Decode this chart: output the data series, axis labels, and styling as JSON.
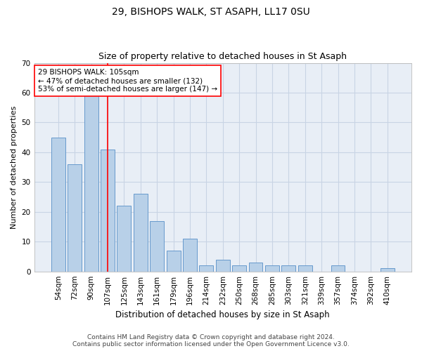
{
  "title1": "29, BISHOPS WALK, ST ASAPH, LL17 0SU",
  "title2": "Size of property relative to detached houses in St Asaph",
  "xlabel": "Distribution of detached houses by size in St Asaph",
  "ylabel": "Number of detached properties",
  "categories": [
    "54sqm",
    "72sqm",
    "90sqm",
    "107sqm",
    "125sqm",
    "143sqm",
    "161sqm",
    "179sqm",
    "196sqm",
    "214sqm",
    "232sqm",
    "250sqm",
    "268sqm",
    "285sqm",
    "303sqm",
    "321sqm",
    "339sqm",
    "357sqm",
    "374sqm",
    "392sqm",
    "410sqm"
  ],
  "values": [
    45,
    36,
    59,
    41,
    22,
    26,
    17,
    7,
    11,
    2,
    4,
    2,
    3,
    2,
    2,
    2,
    0,
    2,
    0,
    0,
    1
  ],
  "bar_color": "#b8d0e8",
  "bar_edge_color": "#6699cc",
  "grid_color": "#c8d4e4",
  "background_color": "#e8eef6",
  "property_line_color": "red",
  "annotation_text": "29 BISHOPS WALK: 105sqm\n← 47% of detached houses are smaller (132)\n53% of semi-detached houses are larger (147) →",
  "annotation_box_color": "white",
  "annotation_box_edge": "red",
  "ylim": [
    0,
    70
  ],
  "yticks": [
    0,
    10,
    20,
    30,
    40,
    50,
    60,
    70
  ],
  "footer_line1": "Contains HM Land Registry data © Crown copyright and database right 2024.",
  "footer_line2": "Contains public sector information licensed under the Open Government Licence v3.0.",
  "title1_fontsize": 10,
  "title2_fontsize": 9,
  "xlabel_fontsize": 8.5,
  "ylabel_fontsize": 8,
  "tick_fontsize": 7.5,
  "annotation_fontsize": 7.5,
  "footer_fontsize": 6.5
}
